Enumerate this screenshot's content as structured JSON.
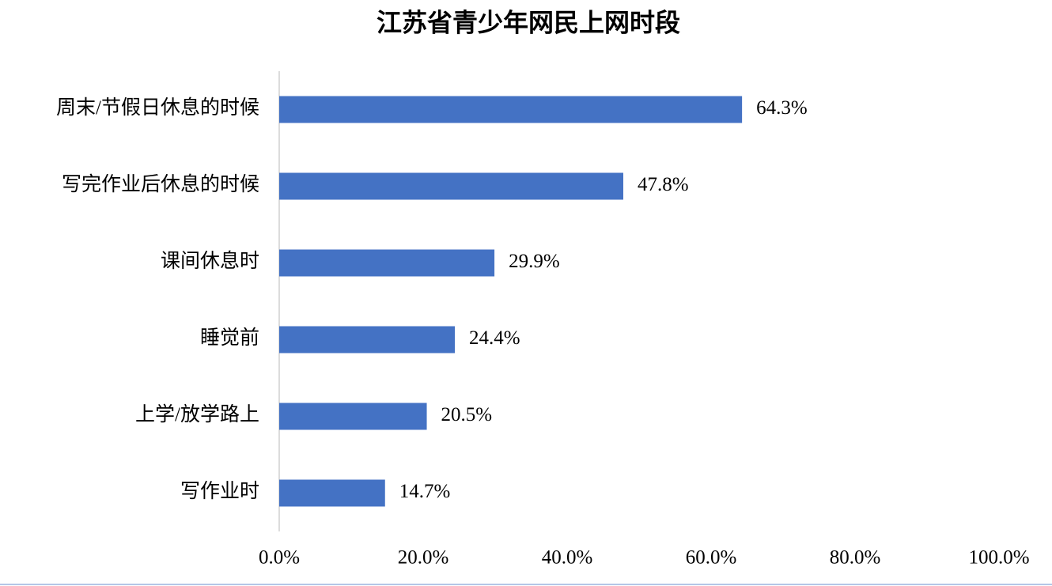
{
  "chart_data": {
    "type": "barh",
    "title": "江苏省青少年网民上网时段",
    "categories": [
      "周末/节假日休息的时候",
      "写完作业后休息的时候",
      "课间休息时",
      "睡觉前",
      "上学/放学路上",
      "写作业时"
    ],
    "values": [
      64.3,
      47.8,
      29.9,
      24.4,
      20.5,
      14.7
    ],
    "value_labels": [
      "64.3%",
      "47.8%",
      "29.9%",
      "24.4%",
      "20.5%",
      "14.7%"
    ],
    "color": "#4472c4",
    "xlim": [
      0,
      100
    ],
    "xticks": [
      {
        "value": 0,
        "label": "0.0%"
      },
      {
        "value": 20,
        "label": "20.0%"
      },
      {
        "value": 40,
        "label": "40.0%"
      },
      {
        "value": 60,
        "label": "60.0%"
      },
      {
        "value": 80,
        "label": "80.0%"
      },
      {
        "value": 100,
        "label": "100.0%"
      }
    ],
    "grid": false
  }
}
